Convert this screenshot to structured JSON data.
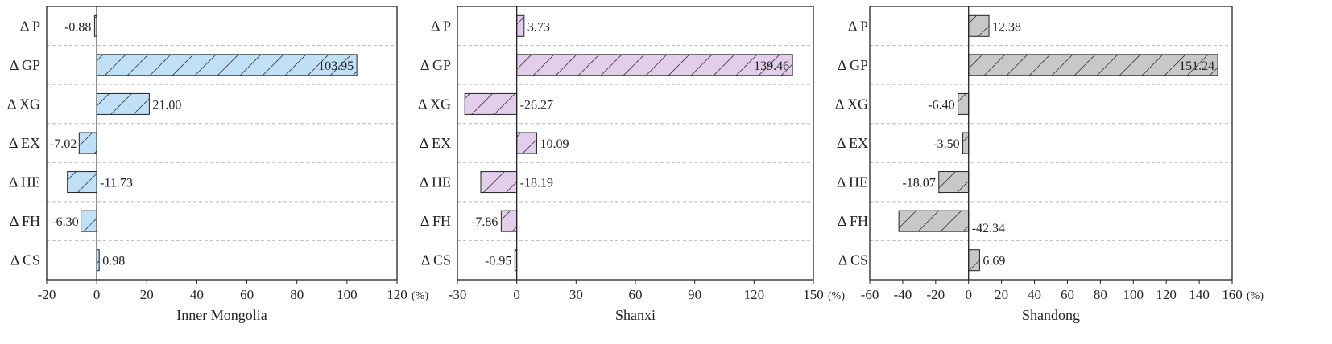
{
  "chart_data": [
    {
      "type": "bar",
      "orientation": "horizontal",
      "xlabel": "Inner Mongolia",
      "unit": "(%)",
      "categories": [
        "Δ P",
        "Δ GP",
        "Δ XG",
        "Δ EX",
        "Δ HE",
        "Δ FH",
        "Δ CS"
      ],
      "values": [
        -0.88,
        103.95,
        21.0,
        -7.02,
        -11.73,
        -6.3,
        0.98
      ],
      "value_labels": [
        "-0.88",
        "103.95",
        "21.00",
        "-7.02",
        "-11.73",
        "-6.30",
        "0.98"
      ],
      "xlim": [
        -20,
        120
      ],
      "xticks": [
        "-20",
        "0",
        "20",
        "40",
        "60",
        "80",
        "100",
        "120"
      ],
      "color": "#bfe0f7",
      "hatch": true
    },
    {
      "type": "bar",
      "orientation": "horizontal",
      "xlabel": "Shanxi",
      "unit": "(%)",
      "categories": [
        "Δ P",
        "Δ GP",
        "Δ XG",
        "Δ EX",
        "Δ HE",
        "Δ FH",
        "Δ CS"
      ],
      "values": [
        3.73,
        139.46,
        -26.27,
        10.09,
        -18.19,
        -7.86,
        -0.95
      ],
      "value_labels": [
        "3.73",
        "139.46",
        "-26.27",
        "10.09",
        "-18.19",
        "-7.86",
        "-0.95"
      ],
      "xlim": [
        -30,
        150
      ],
      "xticks": [
        "-30",
        "0",
        "30",
        "60",
        "90",
        "120",
        "150"
      ],
      "color": "#e2cdea",
      "hatch": true
    },
    {
      "type": "bar",
      "orientation": "horizontal",
      "xlabel": "Shandong",
      "unit": "(%)",
      "categories": [
        "Δ P",
        "Δ GP",
        "Δ XG",
        "Δ EX",
        "Δ HE",
        "Δ FH",
        "Δ CS"
      ],
      "values": [
        12.38,
        151.24,
        -6.4,
        -3.5,
        -18.07,
        -42.34,
        6.69
      ],
      "value_labels": [
        "12.38",
        "151.24",
        "-6.40",
        "-3.50",
        "-18.07",
        "-42.34",
        "6.69"
      ],
      "xlim": [
        -60,
        160
      ],
      "xticks": [
        "-60",
        "-40",
        "-20",
        "0",
        "20",
        "40",
        "60",
        "80",
        "100",
        "120",
        "140",
        "160"
      ],
      "color": "#c8c8c8",
      "hatch": true
    }
  ]
}
